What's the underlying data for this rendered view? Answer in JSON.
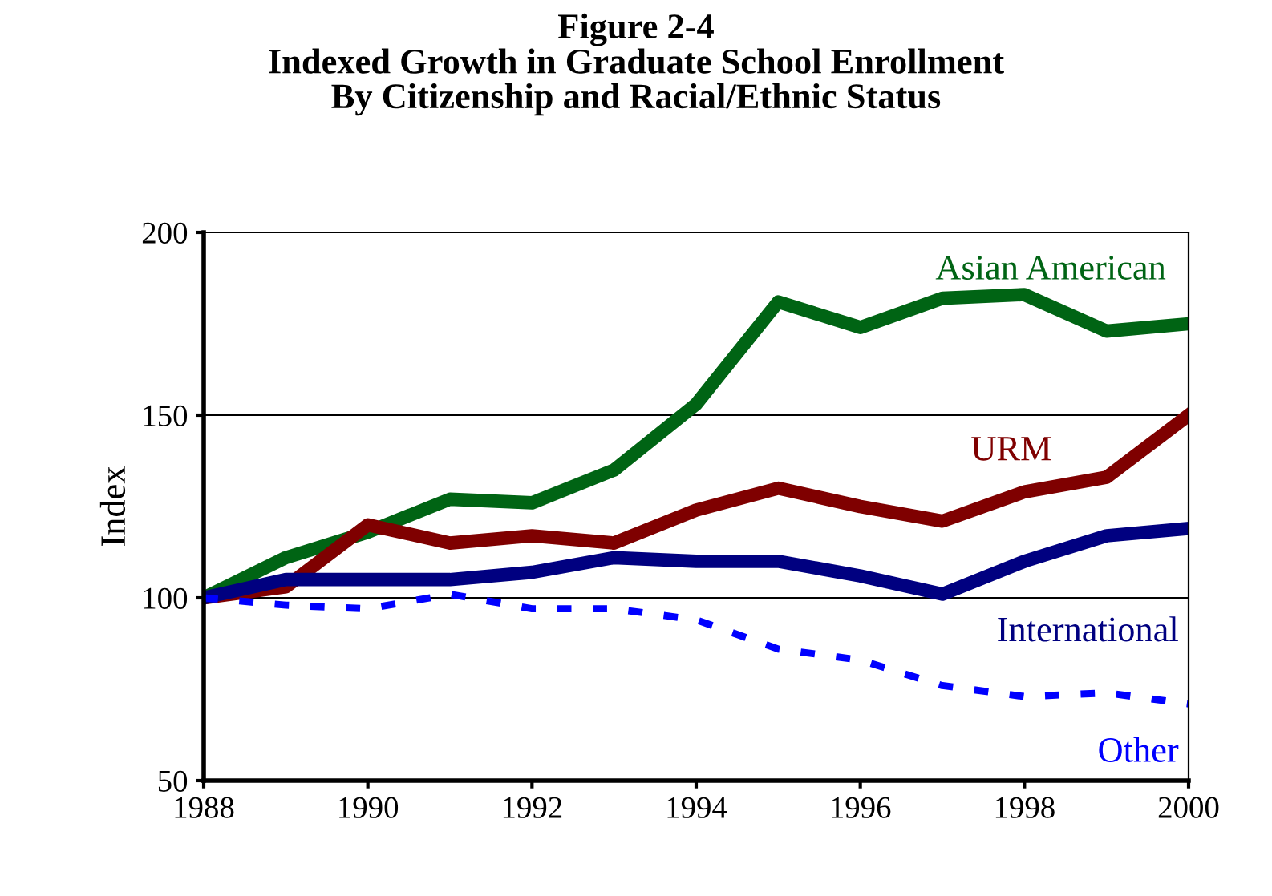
{
  "chart_data": {
    "type": "line",
    "title": "Figure 2-4\nIndexed Growth in Graduate School Enrollment\nBy Citizenship and Racial/Ethnic Status",
    "ylabel": "Index",
    "x": [
      1988,
      1989,
      1990,
      1991,
      1992,
      1993,
      1994,
      1995,
      1996,
      1997,
      1998,
      1999,
      2000
    ],
    "series": [
      {
        "name": "Asian American",
        "color": "#006414",
        "values": [
          100,
          111,
          118,
          127,
          126,
          135,
          153,
          181,
          174,
          182,
          183,
          173,
          175
        ]
      },
      {
        "name": "URM",
        "color": "#7f0000",
        "values": [
          100,
          103,
          120,
          115,
          117,
          115,
          124,
          130,
          125,
          121,
          129,
          133,
          150
        ]
      },
      {
        "name": "International",
        "color": "#000080",
        "values": [
          100,
          105,
          105,
          105,
          107,
          111,
          110,
          110,
          106,
          101,
          110,
          117,
          119
        ]
      },
      {
        "name": "Other",
        "color": "#0000ff",
        "line_style": "dashed",
        "values": [
          100,
          98,
          97,
          101,
          97,
          97,
          94,
          86,
          83,
          76,
          73,
          74,
          71
        ]
      }
    ],
    "xlim": [
      1988,
      2000
    ],
    "xticks": [
      1988,
      1990,
      1992,
      1994,
      1996,
      1998,
      2000
    ],
    "ylim": [
      50,
      200
    ],
    "yticks": [
      50,
      100,
      150,
      200
    ],
    "grid": "y",
    "legend": false
  }
}
